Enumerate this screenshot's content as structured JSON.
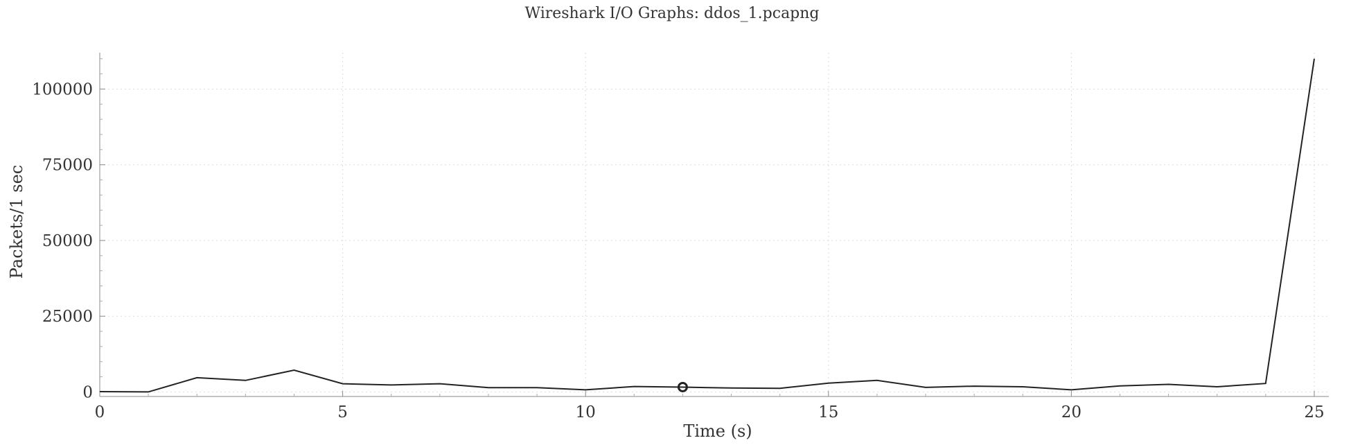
{
  "chart_data": {
    "type": "line",
    "title": "Wireshark I/O Graphs: ddos_1.pcapng",
    "xlabel": "Time (s)",
    "ylabel": "Packets/1 sec",
    "xlim": [
      0,
      25.3
    ],
    "ylim": [
      -1500,
      112000
    ],
    "xticks": [
      0,
      5,
      10,
      15,
      20,
      25
    ],
    "yticks": [
      0,
      25000,
      50000,
      75000,
      100000
    ],
    "grid": true,
    "legend": "none",
    "line_color": "#222222",
    "series": [
      {
        "x": [
          0,
          1,
          2,
          3,
          4,
          5,
          6,
          7,
          8,
          9,
          10,
          11,
          12,
          13,
          14,
          15,
          16,
          17,
          18,
          19,
          20,
          21,
          22,
          23,
          24,
          25
        ],
        "values": [
          100,
          0,
          4700,
          3800,
          7200,
          2700,
          2300,
          2700,
          1400,
          1400,
          700,
          1800,
          1600,
          1300,
          1200,
          2900,
          3800,
          1500,
          1900,
          1700,
          700,
          2000,
          2500,
          1700,
          2800,
          110000
        ]
      }
    ],
    "marker_point": {
      "x": 12,
      "y": 1600
    }
  }
}
